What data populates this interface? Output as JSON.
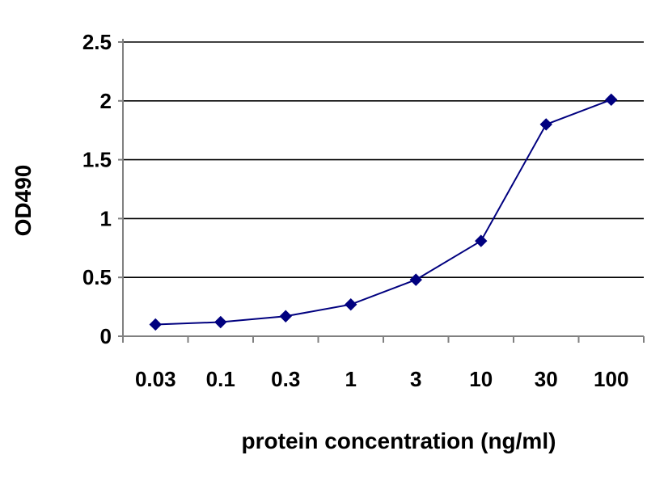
{
  "chart_data": {
    "type": "line",
    "title": "",
    "xlabel": "protein concentration (ng/ml)",
    "ylabel": "OD490",
    "categories": [
      "0.03",
      "0.1",
      "0.3",
      "1",
      "3",
      "10",
      "30",
      "100"
    ],
    "series": [
      {
        "values": [
          0.1,
          0.12,
          0.17,
          0.27,
          0.48,
          0.81,
          1.8,
          2.01
        ]
      }
    ],
    "ylim": [
      0,
      2.5
    ],
    "yticks": [
      "0",
      "0.5",
      "1",
      "1.5",
      "2",
      "2.5"
    ],
    "grid": true,
    "legend": "none",
    "colors": {
      "series": "#00007f",
      "grid": "#000000",
      "axis": "#808080"
    }
  }
}
